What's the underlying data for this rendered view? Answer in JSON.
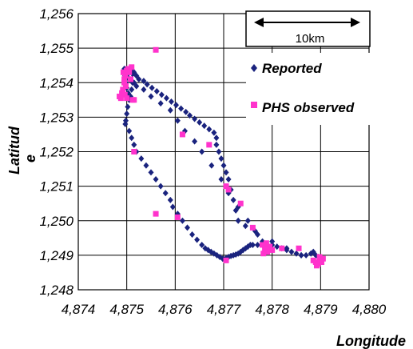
{
  "chart_data": {
    "type": "scatter",
    "title": "",
    "xlabel": "Longitude",
    "ylabel_lines": [
      "Latitud",
      "e"
    ],
    "xlim": [
      4874,
      4880
    ],
    "ylim": [
      1248,
      1256
    ],
    "x_ticks": [
      4874,
      4875,
      4876,
      4877,
      4878,
      4879,
      4880
    ],
    "x_tick_labels": [
      "4,874",
      "4,875",
      "4,876",
      "4,877",
      "4,878",
      "4,879",
      "4,880"
    ],
    "y_ticks": [
      1248,
      1249,
      1250,
      1251,
      1252,
      1253,
      1254,
      1255,
      1256
    ],
    "y_tick_labels": [
      "1,248",
      "1,249",
      "1,250",
      "1,251",
      "1,252",
      "1,253",
      "1,254",
      "1,255",
      "1,256"
    ],
    "grid": true,
    "legend_placement": "top-right",
    "scale_bar": {
      "label": "10km"
    },
    "series": [
      {
        "name": "Reported",
        "marker": "diamond",
        "color": "#1a237e",
        "x": [
          4874.95,
          4874.96,
          4874.98,
          4875.0,
          4875.03,
          4875.07,
          4875.12,
          4875.15,
          4875.1,
          4875.08,
          4875.05,
          4875.02,
          4875.0,
          4874.98,
          4874.97,
          4875.05,
          4875.1,
          4875.15,
          4875.2,
          4875.3,
          4875.4,
          4875.5,
          4875.6,
          4875.7,
          4875.8,
          4875.9,
          4875.95,
          4876.05,
          4876.15,
          4876.25,
          4876.35,
          4876.45,
          4876.55,
          4876.62,
          4876.68,
          4876.74,
          4876.8,
          4876.86,
          4876.92,
          4876.98,
          4877.05,
          4877.1,
          4877.15,
          4877.2,
          4877.25,
          4877.3,
          4877.35,
          4877.4,
          4877.45,
          4877.5,
          4877.55,
          4877.6,
          4877.7,
          4877.8,
          4877.9,
          4878.0,
          4878.1,
          4878.2,
          4878.3,
          4878.4,
          4878.5,
          4878.6,
          4878.7,
          4878.8,
          4878.85,
          4878.9,
          4878.95,
          4879.0,
          4878.6,
          4878.3,
          4878.0,
          4877.7,
          4877.45,
          4877.3,
          4877.25,
          4877.2,
          4877.15,
          4877.1,
          4877.05,
          4877.0,
          4876.95,
          4876.9,
          4876.85,
          4876.85,
          4876.8,
          4876.7,
          4876.6,
          4876.5,
          4876.4,
          4876.3,
          4876.22,
          4876.12,
          4876.02,
          4875.92,
          4875.82,
          4875.72,
          4875.62,
          4875.52,
          4875.42,
          4875.35,
          4875.25,
          4875.2,
          4875.15,
          4875.12,
          4875.1,
          4875.08,
          4875.05,
          4875.02,
          4875.0,
          4875.05,
          4875.12,
          4875.2,
          4875.35,
          4875.5,
          4875.7,
          4875.9,
          4876.05,
          4876.2,
          4876.4,
          4876.55,
          4876.75,
          4876.95,
          4877.1,
          4877.3,
          4877.5,
          4877.65,
          4877.8
        ],
        "y": [
          1254.4,
          1254.2,
          1254.0,
          1253.85,
          1253.7,
          1254.1,
          1254.25,
          1254.0,
          1253.8,
          1253.6,
          1253.5,
          1253.3,
          1253.1,
          1252.9,
          1252.8,
          1252.6,
          1252.4,
          1252.2,
          1252.0,
          1251.8,
          1251.6,
          1251.4,
          1251.2,
          1251.0,
          1250.8,
          1250.6,
          1250.4,
          1250.2,
          1250.0,
          1249.8,
          1249.6,
          1249.45,
          1249.3,
          1249.2,
          1249.15,
          1249.1,
          1249.05,
          1249.0,
          1248.95,
          1248.9,
          1248.92,
          1248.95,
          1248.98,
          1249.0,
          1249.02,
          1249.05,
          1249.1,
          1249.15,
          1249.2,
          1249.25,
          1249.3,
          1249.3,
          1249.3,
          1249.3,
          1249.3,
          1249.3,
          1249.25,
          1249.2,
          1249.15,
          1249.1,
          1249.05,
          1249.0,
          1249.0,
          1249.05,
          1249.1,
          1249.0,
          1248.95,
          1248.9,
          1249.0,
          1249.2,
          1249.4,
          1249.6,
          1249.85,
          1250.0,
          1250.3,
          1250.6,
          1250.9,
          1251.2,
          1251.4,
          1251.6,
          1251.8,
          1252.0,
          1252.2,
          1252.4,
          1252.55,
          1252.65,
          1252.75,
          1252.85,
          1252.95,
          1253.05,
          1253.15,
          1253.25,
          1253.35,
          1253.45,
          1253.55,
          1253.65,
          1253.75,
          1253.85,
          1253.95,
          1254.05,
          1254.1,
          1254.2,
          1254.3,
          1254.35,
          1254.4,
          1254.35,
          1254.3,
          1254.25,
          1254.2,
          1254.1,
          1254.0,
          1253.9,
          1253.8,
          1253.6,
          1253.4,
          1253.2,
          1252.9,
          1252.6,
          1252.3,
          1252.0,
          1251.6,
          1251.2,
          1250.8,
          1250.4,
          1250.0,
          1249.7,
          1249.4
        ],
        "subset_note": ""
      },
      {
        "name": "PHS observed",
        "marker": "square",
        "color": "#ff33cc",
        "x": [
          4874.85,
          4874.9,
          4874.92,
          4874.95,
          4874.97,
          4875.0,
          4875.03,
          4875.05,
          4875.08,
          4875.1,
          4874.98,
          4874.95,
          4874.93,
          4874.96,
          4875.0,
          4875.12,
          4875.15,
          4875.6,
          4876.15,
          4876.05,
          4876.7,
          4877.05,
          4877.1,
          4877.35,
          4877.6,
          4877.8,
          4877.85,
          4877.9,
          4877.95,
          4878.0,
          4877.82,
          4877.88,
          4878.2,
          4878.55,
          4878.85,
          4878.9,
          4878.95,
          4879.0,
          4879.05,
          4878.98,
          4878.92,
          4879.02,
          4877.05,
          4875.6,
          4875.15,
          4874.88
        ],
        "y": [
          1253.6,
          1253.7,
          1253.8,
          1254.0,
          1254.2,
          1254.35,
          1254.4,
          1254.3,
          1254.1,
          1254.45,
          1253.9,
          1254.1,
          1254.3,
          1253.65,
          1253.55,
          1253.5,
          1252.0,
          1254.95,
          1252.5,
          1250.1,
          1252.2,
          1251.0,
          1250.9,
          1250.5,
          1249.8,
          1249.3,
          1249.2,
          1249.1,
          1249.25,
          1249.15,
          1249.05,
          1249.35,
          1249.2,
          1249.2,
          1248.85,
          1248.8,
          1248.75,
          1248.85,
          1248.9,
          1248.95,
          1248.7,
          1248.8,
          1248.85,
          1250.2,
          1253.5,
          1253.55
        ]
      }
    ]
  }
}
